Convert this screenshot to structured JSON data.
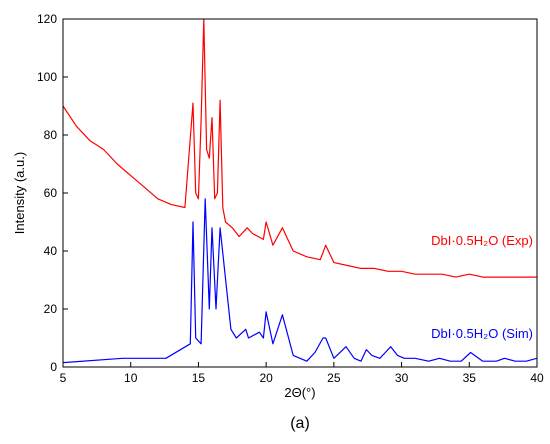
{
  "chart_data": {
    "type": "line",
    "xlabel": "2Θ(°)",
    "ylabel": "Intensity (a.u.)",
    "xlim": [
      5,
      40
    ],
    "ylim": [
      0,
      120
    ],
    "x_ticks": [
      5,
      10,
      15,
      20,
      25,
      30,
      35,
      40
    ],
    "y_ticks": [
      0,
      20,
      40,
      60,
      80,
      100,
      120
    ],
    "grid": false,
    "panel_label": "(a)",
    "series": [
      {
        "name": "DbI·0.5H₂O (Exp)",
        "color": "#ff0000",
        "x": [
          5,
          6,
          7,
          8,
          9,
          10,
          11,
          12,
          13,
          14,
          14.6,
          14.8,
          15.0,
          15.2,
          15.4,
          15.6,
          15.8,
          16.0,
          16.2,
          16.4,
          16.6,
          16.8,
          17.0,
          17.5,
          18.0,
          18.6,
          19.0,
          19.8,
          20.0,
          20.5,
          21.2,
          22,
          23,
          24,
          24.4,
          25,
          26,
          27,
          28,
          29,
          30,
          31,
          32,
          33,
          34,
          35,
          36,
          37,
          38,
          39,
          40
        ],
        "y": [
          90,
          83,
          78,
          75,
          70,
          66,
          62,
          58,
          56,
          55,
          91,
          60,
          58,
          85,
          120,
          75,
          72,
          86,
          58,
          60,
          92,
          55,
          50,
          48,
          45,
          48,
          46,
          44,
          50,
          42,
          48,
          40,
          38,
          37,
          42,
          36,
          35,
          34,
          34,
          33,
          33,
          32,
          32,
          32,
          31,
          32,
          31,
          31,
          31,
          31,
          31
        ]
      },
      {
        "name": "DbI·0.5H₂O (Sim)",
        "color": "#0000ff",
        "x": [
          5,
          9.4,
          12.6,
          14.4,
          14.6,
          14.8,
          15.2,
          15.5,
          15.8,
          16.0,
          16.3,
          16.6,
          17.4,
          17.8,
          18.5,
          18.7,
          19.5,
          19.8,
          20.0,
          20.5,
          21.2,
          22.0,
          23.0,
          23.6,
          24.2,
          24.4,
          25.0,
          25.9,
          26.5,
          27.0,
          27.4,
          27.8,
          28.4,
          28.8,
          29.2,
          29.7,
          30.2,
          31.0,
          32.0,
          32.8,
          33.6,
          34.4,
          35.1,
          36.0,
          37.0,
          37.6,
          38.4,
          39.2,
          40.0
        ],
        "y": [
          1.5,
          3,
          3,
          8,
          50,
          10,
          8,
          58,
          20,
          48,
          20,
          48,
          13,
          10,
          13,
          10,
          12,
          10,
          19,
          8,
          18,
          4,
          2,
          5,
          10,
          10,
          3,
          7,
          3,
          2,
          6,
          4,
          3,
          5,
          7,
          4,
          3,
          3,
          2,
          3,
          2,
          2,
          5,
          2,
          2,
          3,
          2,
          2,
          3
        ]
      }
    ]
  }
}
